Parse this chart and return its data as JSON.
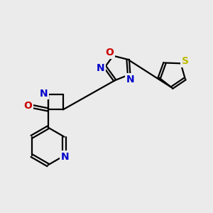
{
  "background_color": "#ebebeb",
  "bond_color": "#000000",
  "N_color": "#0000cc",
  "O_color": "#cc0000",
  "S_color": "#bbbb00",
  "line_width": 1.6,
  "figsize": [
    3.0,
    3.0
  ],
  "dpi": 100,
  "xlim": [
    0,
    10
  ],
  "ylim": [
    0,
    10
  ]
}
